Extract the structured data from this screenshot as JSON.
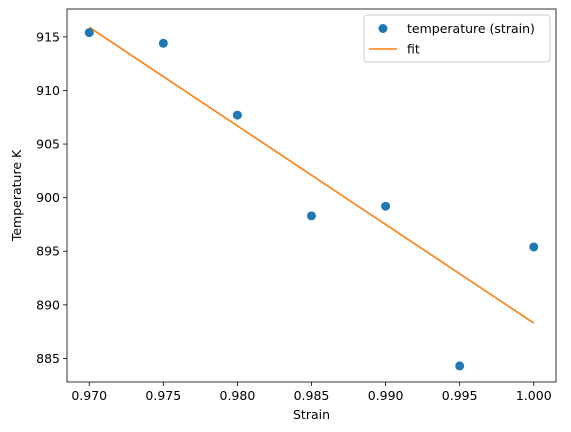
{
  "chart_data": {
    "type": "scatter",
    "xlabel": "Strain",
    "ylabel": "Temperature K",
    "xlim": [
      0.9685,
      1.0015
    ],
    "ylim": [
      882.8,
      917.6
    ],
    "x_ticks": [
      "0.970",
      "0.975",
      "0.980",
      "0.985",
      "0.990",
      "0.995",
      "1.000"
    ],
    "y_ticks": [
      "885",
      "890",
      "895",
      "900",
      "905",
      "910",
      "915"
    ],
    "grid": false,
    "legend_position": "top-right",
    "series": [
      {
        "name": "temperature (strain)",
        "kind": "scatter",
        "color": "#1f77b4",
        "x": [
          0.97,
          0.975,
          0.98,
          0.985,
          0.99,
          0.995,
          1.0
        ],
        "y": [
          915.4,
          914.4,
          907.7,
          898.3,
          899.2,
          884.3,
          895.4
        ]
      },
      {
        "name": "fit",
        "kind": "line",
        "color": "#ff7f0e",
        "x": [
          0.97,
          1.0
        ],
        "y": [
          915.9,
          888.3
        ]
      }
    ]
  }
}
